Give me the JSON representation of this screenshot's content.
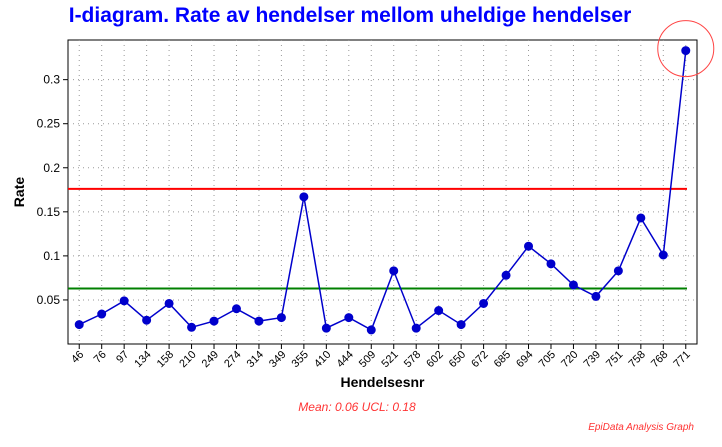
{
  "chart_data": {
    "type": "line",
    "title": "I-diagram. Rate av hendelser mellom uheldige hendelser",
    "xlabel": "Hendelsesnr",
    "ylabel": "Rate",
    "categories": [
      "46",
      "76",
      "97",
      "134",
      "158",
      "210",
      "249",
      "274",
      "314",
      "349",
      "355",
      "410",
      "444",
      "509",
      "521",
      "578",
      "602",
      "650",
      "672",
      "685",
      "694",
      "705",
      "720",
      "739",
      "751",
      "758",
      "768",
      "771"
    ],
    "series": [
      {
        "values": [
          0.022,
          0.034,
          0.049,
          0.027,
          0.046,
          0.019,
          0.026,
          0.04,
          0.026,
          0.03,
          0.167,
          0.018,
          0.03,
          0.016,
          0.083,
          0.018,
          0.038,
          0.022,
          0.046,
          0.078,
          0.111,
          0.091,
          0.067,
          0.054,
          0.083,
          0.143,
          0.101,
          0.333
        ],
        "color": "#0000cc"
      }
    ],
    "mean": 0.063,
    "ucl": 0.176,
    "ylim": [
      0,
      0.345
    ],
    "yticks": [
      0.05,
      0.1,
      0.15,
      0.2,
      0.25,
      0.3
    ],
    "ytick_labels": [
      "0.05",
      "0.1",
      "0.15",
      "0.2",
      "0.25",
      "0.3"
    ],
    "grid": true,
    "mean_line_color": "#008000",
    "ucl_line_color": "#ff0000",
    "highlight_color": "#ff4444",
    "highlighted_category": "771"
  },
  "stats_text": "Mean: 0.06 UCL: 0.18",
  "watermark": "EpiData Analysis Graph"
}
